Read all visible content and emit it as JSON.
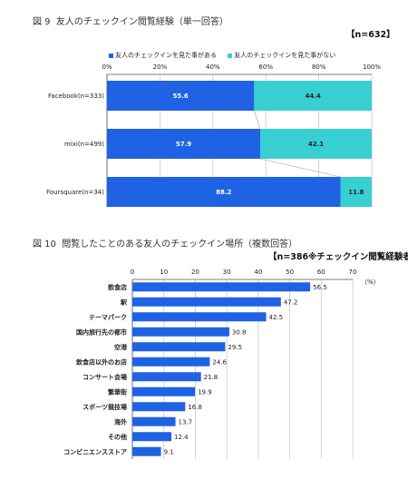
{
  "colors": {
    "dark": "#1f63e4",
    "light": "#37cfd1",
    "grid": "#c8c8c8",
    "frame": "#555555"
  },
  "chart_data": [
    {
      "type": "bar",
      "orientation": "horizontal",
      "stacked": true,
      "figure_label": "図 9",
      "title": "友人のチェックイン閲覧経験（単一回答）",
      "sample_note": "【n=632】",
      "categories": [
        "Facebook(n=333)",
        "mixi(n=499)",
        "Foursquare(n=34)"
      ],
      "series": [
        {
          "name": "友人のチェックインを見た事がある",
          "values": [
            55.6,
            57.9,
            88.2
          ]
        },
        {
          "name": "友人のチェックインを見た事がない",
          "values": [
            44.4,
            42.1,
            11.8
          ]
        }
      ],
      "value_labels": [
        [
          "55.6",
          "57.9",
          "88.2"
        ],
        [
          "44.4",
          "42.1",
          "11.8"
        ]
      ],
      "xlim": [
        0,
        100
      ],
      "xticks": [
        "0%",
        "20%",
        "40%",
        "60%",
        "80%",
        "100%"
      ],
      "legend_position": "top",
      "grid": true
    },
    {
      "type": "bar",
      "orientation": "horizontal",
      "figure_label": "図 10",
      "title": "閲覧したことのある友人のチェックイン場所（複数回答）",
      "sample_note": "【n=386※チェックイン閲覧経験者】",
      "unit": "（%）",
      "categories": [
        "飲食店",
        "駅",
        "テーマパーク",
        "国内旅行先の都市",
        "空港",
        "飲食店以外のお店",
        "コンサート会場",
        "繁華街",
        "スポーツ競技場",
        "海外",
        "その他",
        "コンビニエンスストア"
      ],
      "values": [
        56.5,
        47.2,
        42.5,
        30.8,
        29.5,
        24.6,
        21.8,
        19.9,
        16.8,
        13.7,
        12.4,
        9.1
      ],
      "value_labels": [
        "56.5",
        "47.2",
        "42.5",
        "30.8",
        "29.5",
        "24.6",
        "21.8",
        "19.9",
        "16.8",
        "13.7",
        "12.4",
        "9.1"
      ],
      "xlim": [
        0,
        70
      ],
      "xticks": [
        "0",
        "10",
        "20",
        "30",
        "40",
        "50",
        "60",
        "70"
      ],
      "grid": true
    }
  ]
}
